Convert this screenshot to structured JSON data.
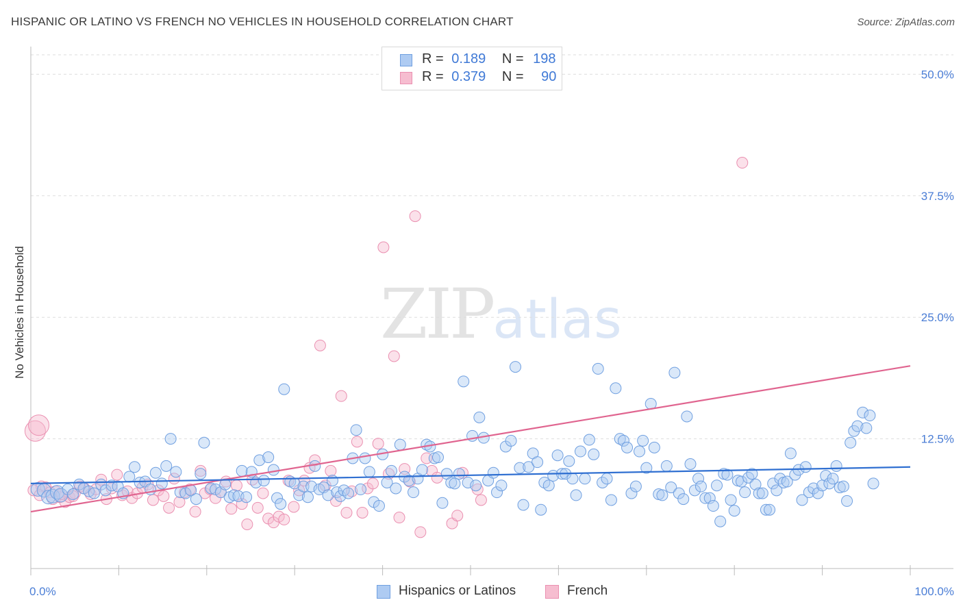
{
  "title": "HISPANIC OR LATINO VS FRENCH NO VEHICLES IN HOUSEHOLD CORRELATION CHART",
  "source": "Source: ZipAtlas.com",
  "watermark": {
    "zip": "ZIP",
    "atlas": "atlas"
  },
  "legend_top": [
    {
      "r_label": "R =",
      "r_value": "0.189",
      "n_label": "N =",
      "n_value": "198"
    },
    {
      "r_label": "R =",
      "r_value": "0.379",
      "n_label": "N =",
      "n_value": "90"
    }
  ],
  "colors": {
    "blue_fill": "#aecbf2",
    "blue_stroke": "#6f9fe0",
    "blue_line": "#2f6fd1",
    "pink_fill": "#f6bdd0",
    "pink_stroke": "#ea8fb0",
    "pink_line": "#e0648f",
    "grid": "#dddddd",
    "tick_text": "#4b7ed6"
  },
  "chart_data": {
    "type": "scatter",
    "title": "HISPANIC OR LATINO VS FRENCH NO VEHICLES IN HOUSEHOLD CORRELATION CHART",
    "xlabel": "",
    "ylabel": "No Vehicles in Household",
    "xlim": [
      0,
      100
    ],
    "ylim": [
      0,
      52
    ],
    "x_tick_labels": [
      "0.0%",
      "100.0%"
    ],
    "y_ticks": [
      12.5,
      25.0,
      37.5,
      50.0
    ],
    "y_tick_labels": [
      "12.5%",
      "25.0%",
      "37.5%",
      "50.0%"
    ],
    "grid": "horizontal dashed",
    "legend_placement": "top-center and bottom",
    "series": [
      {
        "name": "Hispanics or Latinos",
        "color": "#6f9fe0",
        "trend": {
          "x": [
            0,
            100
          ],
          "y": [
            7.9,
            9.6
          ]
        },
        "points": [
          [
            0.8,
            7.3
          ],
          [
            1.5,
            7.2
          ],
          [
            2.0,
            6.5
          ],
          [
            2.5,
            6.6
          ],
          [
            3.0,
            7.0
          ],
          [
            3.4,
            6.7
          ],
          [
            4.2,
            7.3
          ],
          [
            4.8,
            6.8
          ],
          [
            5.5,
            7.8
          ],
          [
            6.0,
            7.4
          ],
          [
            6.6,
            7.1
          ],
          [
            7.2,
            6.9
          ],
          [
            8.0,
            7.8
          ],
          [
            8.5,
            7.2
          ],
          [
            9.2,
            7.7
          ],
          [
            9.9,
            7.6
          ],
          [
            10.5,
            6.9
          ],
          [
            11.2,
            8.6
          ],
          [
            11.8,
            9.6
          ],
          [
            12.4,
            8.0
          ],
          [
            13.0,
            8.1
          ],
          [
            13.6,
            7.3
          ],
          [
            14.2,
            9.0
          ],
          [
            14.9,
            7.9
          ],
          [
            15.4,
            9.7
          ],
          [
            15.9,
            12.5
          ],
          [
            16.5,
            9.1
          ],
          [
            17.0,
            7.0
          ],
          [
            17.6,
            6.9
          ],
          [
            18.2,
            7.2
          ],
          [
            18.8,
            6.3
          ],
          [
            19.3,
            8.9
          ],
          [
            19.7,
            12.1
          ],
          [
            20.5,
            7.4
          ],
          [
            21.0,
            7.3
          ],
          [
            21.6,
            7.0
          ],
          [
            22.1,
            7.8
          ],
          [
            22.6,
            6.5
          ],
          [
            23.1,
            6.7
          ],
          [
            23.6,
            6.6
          ],
          [
            24.0,
            9.2
          ],
          [
            24.5,
            6.5
          ],
          [
            25.1,
            9.1
          ],
          [
            25.6,
            8.0
          ],
          [
            26.0,
            10.3
          ],
          [
            26.5,
            8.2
          ],
          [
            27.0,
            10.6
          ],
          [
            27.6,
            9.3
          ],
          [
            28.0,
            6.4
          ],
          [
            28.4,
            5.8
          ],
          [
            28.8,
            17.6
          ],
          [
            29.5,
            8.1
          ],
          [
            30.0,
            7.9
          ],
          [
            30.5,
            6.7
          ],
          [
            31.0,
            7.6
          ],
          [
            31.5,
            6.5
          ],
          [
            31.9,
            7.6
          ],
          [
            32.3,
            9.7
          ],
          [
            32.8,
            7.3
          ],
          [
            33.3,
            7.5
          ],
          [
            33.8,
            6.7
          ],
          [
            34.3,
            8.2
          ],
          [
            34.8,
            7.0
          ],
          [
            35.2,
            6.6
          ],
          [
            35.6,
            7.2
          ],
          [
            36.1,
            6.9
          ],
          [
            36.6,
            10.5
          ],
          [
            37.0,
            13.4
          ],
          [
            37.5,
            7.3
          ],
          [
            38.0,
            10.5
          ],
          [
            38.5,
            9.1
          ],
          [
            39.0,
            6.0
          ],
          [
            39.6,
            5.6
          ],
          [
            40.0,
            10.9
          ],
          [
            40.5,
            8.0
          ],
          [
            41.0,
            9.2
          ],
          [
            41.5,
            7.4
          ],
          [
            42.0,
            11.9
          ],
          [
            42.5,
            8.6
          ],
          [
            43.0,
            8.2
          ],
          [
            43.5,
            7.0
          ],
          [
            44.0,
            8.4
          ],
          [
            44.5,
            9.3
          ],
          [
            45.0,
            11.9
          ],
          [
            45.4,
            11.7
          ],
          [
            45.9,
            10.5
          ],
          [
            46.3,
            10.6
          ],
          [
            46.8,
            5.9
          ],
          [
            47.3,
            8.9
          ],
          [
            47.8,
            8.0
          ],
          [
            48.2,
            7.9
          ],
          [
            48.7,
            8.9
          ],
          [
            49.2,
            18.4
          ],
          [
            49.7,
            8.0
          ],
          [
            50.2,
            12.8
          ],
          [
            50.6,
            7.7
          ],
          [
            51.0,
            14.7
          ],
          [
            51.5,
            12.6
          ],
          [
            52.0,
            8.2
          ],
          [
            52.6,
            9.0
          ],
          [
            53.0,
            7.0
          ],
          [
            53.5,
            7.7
          ],
          [
            54.0,
            11.7
          ],
          [
            54.6,
            12.3
          ],
          [
            55.1,
            19.9
          ],
          [
            55.6,
            9.5
          ],
          [
            56.0,
            5.7
          ],
          [
            56.6,
            9.6
          ],
          [
            57.1,
            11.0
          ],
          [
            57.6,
            10.1
          ],
          [
            58.0,
            5.2
          ],
          [
            58.4,
            8.0
          ],
          [
            58.9,
            7.7
          ],
          [
            59.4,
            8.7
          ],
          [
            59.9,
            10.8
          ],
          [
            60.4,
            8.9
          ],
          [
            60.8,
            8.9
          ],
          [
            61.2,
            10.2
          ],
          [
            61.6,
            8.4
          ],
          [
            62.0,
            6.7
          ],
          [
            62.5,
            11.2
          ],
          [
            63.0,
            8.4
          ],
          [
            63.5,
            12.4
          ],
          [
            64.0,
            10.9
          ],
          [
            64.5,
            19.7
          ],
          [
            65.0,
            8.0
          ],
          [
            65.5,
            8.4
          ],
          [
            66.0,
            6.2
          ],
          [
            66.5,
            17.7
          ],
          [
            67.0,
            12.5
          ],
          [
            67.4,
            12.3
          ],
          [
            67.8,
            11.6
          ],
          [
            68.3,
            6.9
          ],
          [
            68.8,
            7.6
          ],
          [
            69.2,
            11.2
          ],
          [
            69.6,
            12.3
          ],
          [
            70.0,
            9.5
          ],
          [
            70.5,
            16.1
          ],
          [
            70.9,
            11.6
          ],
          [
            71.4,
            6.8
          ],
          [
            71.8,
            6.7
          ],
          [
            72.3,
            9.7
          ],
          [
            72.8,
            7.5
          ],
          [
            73.2,
            19.3
          ],
          [
            73.7,
            6.9
          ],
          [
            74.2,
            6.3
          ],
          [
            74.6,
            14.8
          ],
          [
            75.0,
            9.9
          ],
          [
            75.5,
            7.2
          ],
          [
            75.9,
            8.4
          ],
          [
            76.2,
            7.6
          ],
          [
            76.7,
            6.4
          ],
          [
            77.2,
            6.4
          ],
          [
            77.6,
            5.6
          ],
          [
            78.0,
            7.7
          ],
          [
            78.4,
            4.0
          ],
          [
            78.8,
            8.9
          ],
          [
            79.2,
            8.8
          ],
          [
            79.6,
            6.2
          ],
          [
            80.0,
            5.1
          ],
          [
            80.4,
            8.2
          ],
          [
            80.8,
            8.1
          ],
          [
            81.2,
            7.0
          ],
          [
            81.6,
            8.5
          ],
          [
            82.0,
            8.9
          ],
          [
            82.4,
            7.8
          ],
          [
            82.8,
            6.9
          ],
          [
            83.2,
            6.9
          ],
          [
            83.6,
            5.2
          ],
          [
            84.0,
            5.2
          ],
          [
            84.4,
            7.9
          ],
          [
            84.8,
            7.2
          ],
          [
            85.2,
            8.4
          ],
          [
            85.6,
            8.0
          ],
          [
            86.0,
            8.1
          ],
          [
            86.4,
            11.0
          ],
          [
            86.9,
            8.8
          ],
          [
            87.3,
            9.3
          ],
          [
            87.7,
            6.2
          ],
          [
            88.1,
            9.6
          ],
          [
            88.5,
            7.0
          ],
          [
            89.0,
            7.4
          ],
          [
            89.5,
            6.9
          ],
          [
            90.0,
            7.7
          ],
          [
            90.4,
            8.7
          ],
          [
            90.8,
            7.9
          ],
          [
            91.2,
            8.4
          ],
          [
            91.6,
            9.7
          ],
          [
            92.0,
            7.5
          ],
          [
            92.4,
            7.6
          ],
          [
            92.8,
            6.1
          ],
          [
            93.2,
            12.1
          ],
          [
            93.6,
            13.3
          ],
          [
            94.0,
            13.8
          ],
          [
            94.6,
            15.2
          ],
          [
            95.0,
            13.6
          ],
          [
            95.4,
            14.9
          ],
          [
            95.8,
            7.9
          ]
        ]
      },
      {
        "name": "French",
        "color": "#ea8fb0",
        "trend": {
          "x": [
            0,
            100
          ],
          "y": [
            5.0,
            20.0
          ]
        },
        "points": [
          [
            0.5,
            13.3
          ],
          [
            0.9,
            13.9
          ],
          [
            1.2,
            7.6
          ],
          [
            1.7,
            7.5
          ],
          [
            2.2,
            7.0
          ],
          [
            2.8,
            7.1
          ],
          [
            3.3,
            6.5
          ],
          [
            3.9,
            6.0
          ],
          [
            4.4,
            6.5
          ],
          [
            5.0,
            6.9
          ],
          [
            5.6,
            7.6
          ],
          [
            6.1,
            7.4
          ],
          [
            6.8,
            6.8
          ],
          [
            7.4,
            7.3
          ],
          [
            8.0,
            8.3
          ],
          [
            8.6,
            6.3
          ],
          [
            9.2,
            7.4
          ],
          [
            9.8,
            8.8
          ],
          [
            10.4,
            6.7
          ],
          [
            11.0,
            7.1
          ],
          [
            11.5,
            6.4
          ],
          [
            12.1,
            6.9
          ],
          [
            12.7,
            7.5
          ],
          [
            13.3,
            7.8
          ],
          [
            13.9,
            6.2
          ],
          [
            14.5,
            7.2
          ],
          [
            15.1,
            6.6
          ],
          [
            15.7,
            5.4
          ],
          [
            16.3,
            8.4
          ],
          [
            16.9,
            6.0
          ],
          [
            17.5,
            7.0
          ],
          [
            18.1,
            7.3
          ],
          [
            18.7,
            5.0
          ],
          [
            19.3,
            9.2
          ],
          [
            19.8,
            6.9
          ],
          [
            20.4,
            7.3
          ],
          [
            21.0,
            6.4
          ],
          [
            21.6,
            7.0
          ],
          [
            22.2,
            8.1
          ],
          [
            22.8,
            5.3
          ],
          [
            23.4,
            7.7
          ],
          [
            24.0,
            5.8
          ],
          [
            24.6,
            3.7
          ],
          [
            25.2,
            8.3
          ],
          [
            25.8,
            5.4
          ],
          [
            26.4,
            6.9
          ],
          [
            27.0,
            4.3
          ],
          [
            27.6,
            3.9
          ],
          [
            28.2,
            4.5
          ],
          [
            28.8,
            4.2
          ],
          [
            29.3,
            8.2
          ],
          [
            29.9,
            5.5
          ],
          [
            30.5,
            7.2
          ],
          [
            31.1,
            8.2
          ],
          [
            31.7,
            9.5
          ],
          [
            32.3,
            10.3
          ],
          [
            32.9,
            22.1
          ],
          [
            33.5,
            7.7
          ],
          [
            34.1,
            9.2
          ],
          [
            34.7,
            6.1
          ],
          [
            35.3,
            16.9
          ],
          [
            35.9,
            4.9
          ],
          [
            36.5,
            7.1
          ],
          [
            37.1,
            12.2
          ],
          [
            37.7,
            4.9
          ],
          [
            38.3,
            7.4
          ],
          [
            38.9,
            7.9
          ],
          [
            39.5,
            12.0
          ],
          [
            40.1,
            32.2
          ],
          [
            40.7,
            8.9
          ],
          [
            41.3,
            21.0
          ],
          [
            41.9,
            4.4
          ],
          [
            42.5,
            9.4
          ],
          [
            43.1,
            8.1
          ],
          [
            43.7,
            35.4
          ],
          [
            44.3,
            2.9
          ],
          [
            45.0,
            10.5
          ],
          [
            45.6,
            9.2
          ],
          [
            46.2,
            8.5
          ],
          [
            47.9,
            3.8
          ],
          [
            48.5,
            4.6
          ],
          [
            49.1,
            9.0
          ],
          [
            50.8,
            7.3
          ],
          [
            51.2,
            6.2
          ],
          [
            80.9,
            40.9
          ],
          [
            0.3,
            7.2
          ],
          [
            1.0,
            6.7
          ],
          [
            2.5,
            6.3
          ],
          [
            3.5,
            6.8
          ],
          [
            4.8,
            6.6
          ]
        ]
      }
    ]
  },
  "legend_bottom": [
    {
      "label": "Hispanics or Latinos"
    },
    {
      "label": "French"
    }
  ]
}
